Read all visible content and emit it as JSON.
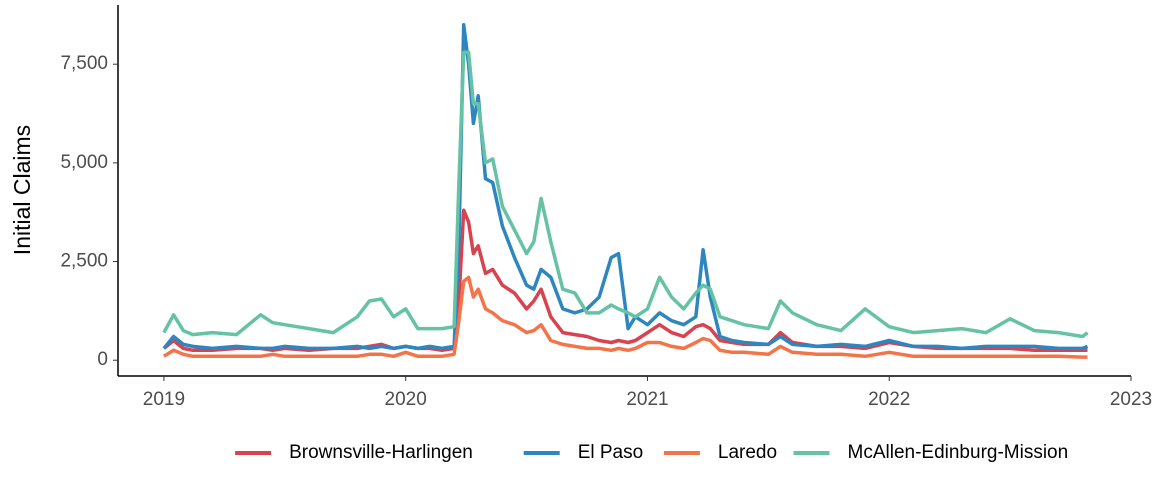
{
  "chart_data": {
    "type": "line",
    "y_label": "Initial Claims",
    "x": [
      2019.0,
      2019.04,
      2019.08,
      2019.12,
      2019.2,
      2019.3,
      2019.4,
      2019.45,
      2019.5,
      2019.6,
      2019.7,
      2019.8,
      2019.85,
      2019.9,
      2019.95,
      2020.0,
      2020.05,
      2020.1,
      2020.15,
      2020.2,
      2020.22,
      2020.24,
      2020.26,
      2020.28,
      2020.3,
      2020.33,
      2020.36,
      2020.4,
      2020.45,
      2020.5,
      2020.53,
      2020.56,
      2020.6,
      2020.65,
      2020.7,
      2020.75,
      2020.8,
      2020.85,
      2020.88,
      2020.92,
      2020.95,
      2021.0,
      2021.05,
      2021.1,
      2021.15,
      2021.2,
      2021.23,
      2021.26,
      2021.3,
      2021.35,
      2021.4,
      2021.5,
      2021.55,
      2021.6,
      2021.7,
      2021.8,
      2021.9,
      2022.0,
      2022.1,
      2022.2,
      2022.3,
      2022.4,
      2022.5,
      2022.6,
      2022.7,
      2022.8,
      2022.82
    ],
    "series": [
      {
        "name": "Brownsville-Harlingen",
        "color": "#d7434f",
        "values": [
          300,
          500,
          300,
          250,
          250,
          300,
          300,
          250,
          300,
          250,
          300,
          300,
          350,
          400,
          300,
          350,
          300,
          300,
          250,
          300,
          1500,
          3800,
          3500,
          2700,
          2900,
          2200,
          2300,
          1900,
          1700,
          1300,
          1500,
          1800,
          1100,
          700,
          650,
          600,
          500,
          450,
          500,
          450,
          500,
          700,
          900,
          700,
          600,
          850,
          900,
          800,
          500,
          450,
          400,
          400,
          700,
          450,
          350,
          350,
          300,
          450,
          350,
          300,
          300,
          300,
          300,
          250,
          250,
          250,
          250
        ]
      },
      {
        "name": "El Paso",
        "color": "#2e86c1",
        "values": [
          300,
          600,
          400,
          350,
          300,
          350,
          300,
          300,
          350,
          300,
          300,
          350,
          300,
          350,
          300,
          350,
          300,
          350,
          300,
          350,
          3000,
          8500,
          7500,
          6000,
          6700,
          4600,
          4500,
          3400,
          2600,
          1900,
          1800,
          2300,
          2100,
          1300,
          1200,
          1300,
          1600,
          2600,
          2700,
          800,
          1100,
          900,
          1200,
          1000,
          900,
          1100,
          2800,
          1600,
          600,
          500,
          450,
          400,
          600,
          400,
          350,
          400,
          350,
          500,
          350,
          350,
          300,
          350,
          350,
          350,
          300,
          300,
          350
        ]
      },
      {
        "name": "Laredo",
        "color": "#f4744a",
        "values": [
          100,
          250,
          150,
          100,
          100,
          100,
          100,
          150,
          100,
          100,
          100,
          100,
          150,
          150,
          100,
          200,
          100,
          100,
          100,
          150,
          1000,
          2000,
          2100,
          1600,
          1800,
          1300,
          1200,
          1000,
          900,
          700,
          750,
          900,
          500,
          400,
          350,
          300,
          300,
          250,
          300,
          250,
          300,
          450,
          450,
          350,
          300,
          450,
          550,
          500,
          250,
          200,
          200,
          150,
          350,
          200,
          150,
          150,
          100,
          200,
          100,
          100,
          100,
          100,
          100,
          100,
          100,
          80,
          80
        ]
      },
      {
        "name": "McAllen-Edinburg-Mission",
        "color": "#66c2a5",
        "values": [
          700,
          1150,
          750,
          650,
          700,
          650,
          1150,
          950,
          900,
          800,
          700,
          1100,
          1500,
          1550,
          1100,
          1300,
          800,
          800,
          800,
          850,
          4500,
          7800,
          7800,
          6500,
          6500,
          5000,
          5100,
          3900,
          3300,
          2700,
          3000,
          4100,
          3000,
          1800,
          1700,
          1200,
          1200,
          1400,
          1300,
          1200,
          1100,
          1300,
          2100,
          1600,
          1300,
          1700,
          1900,
          1800,
          1100,
          1000,
          900,
          800,
          1500,
          1200,
          900,
          750,
          1300,
          850,
          700,
          750,
          800,
          700,
          1050,
          750,
          700,
          600,
          700
        ]
      }
    ],
    "xlim": [
      2018.81,
      2023.0
    ],
    "xticks": [
      2019,
      2020,
      2021,
      2022,
      2023
    ],
    "ylim": [
      -400,
      9000
    ],
    "yticks": [
      0,
      {
        "value": 2500,
        "label": "2,500"
      },
      {
        "value": 5000,
        "label": "5,000"
      },
      {
        "value": 7500,
        "label": "7,500"
      }
    ],
    "grid": false,
    "legend": "bottom"
  }
}
